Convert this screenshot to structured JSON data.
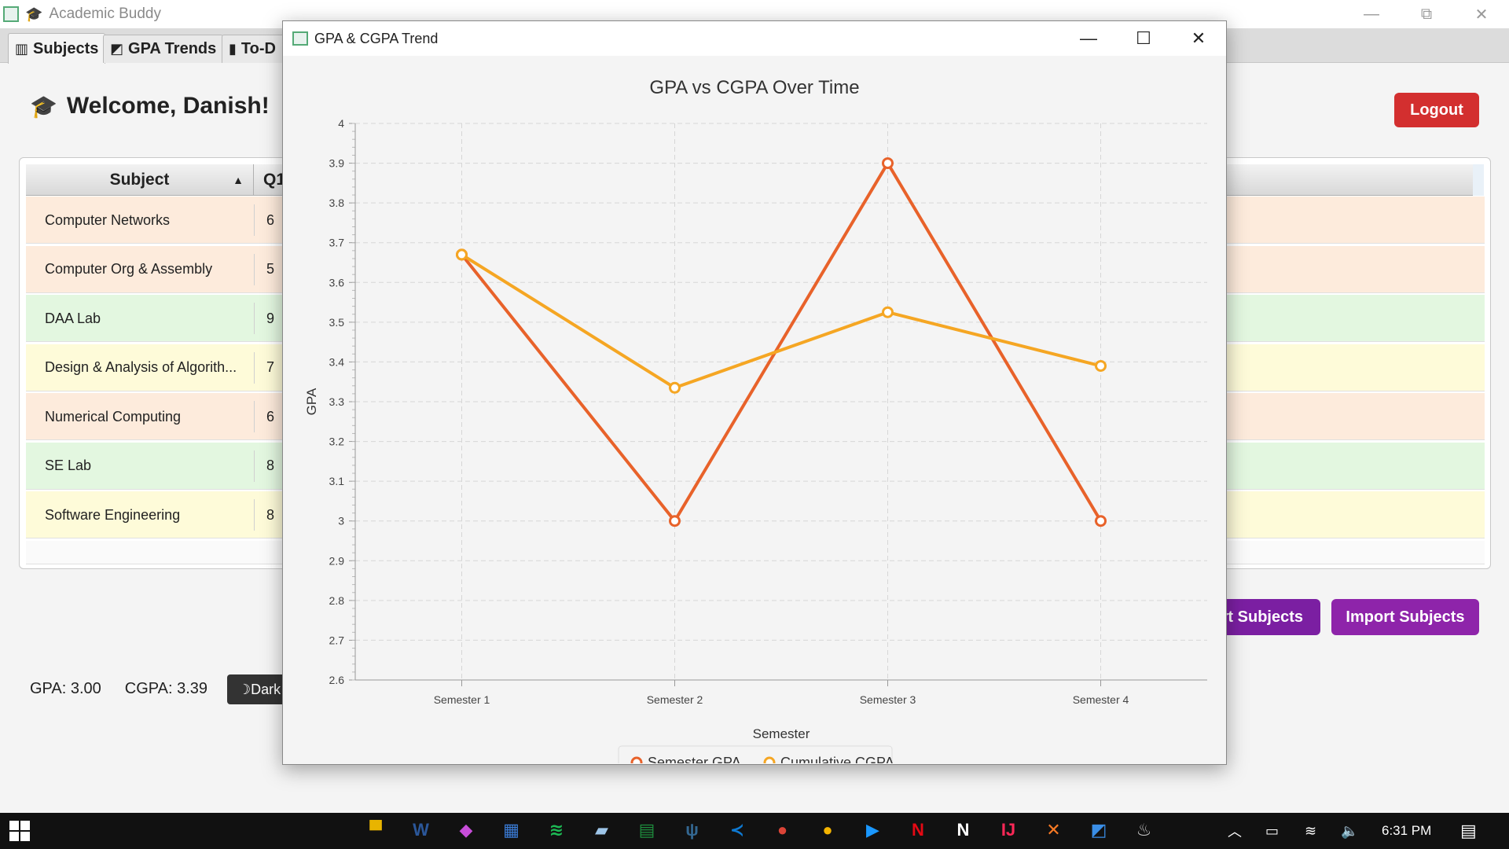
{
  "app": {
    "title": "Academic Buddy",
    "window_controls": [
      "minimize",
      "restore",
      "close"
    ]
  },
  "tabs": [
    {
      "label": "Subjects",
      "icon": "books-icon",
      "active": true
    },
    {
      "label": "GPA Trends",
      "icon": "chart-icon",
      "active": false
    },
    {
      "label": "To-D",
      "icon": "clipboard-icon",
      "active": false
    }
  ],
  "header": {
    "welcome": "Welcome, Danish!",
    "logout_label": "Logout"
  },
  "table": {
    "columns": [
      "Subject",
      "Q1"
    ],
    "rows": [
      {
        "subject": "Computer Networks",
        "q1": "6",
        "color": "#fdebdc"
      },
      {
        "subject": "Computer Org & Assembly",
        "q1": "5",
        "color": "#fdebdc"
      },
      {
        "subject": "DAA Lab",
        "q1": "9",
        "color": "#e3f7e0"
      },
      {
        "subject": "Design & Analysis of Algorith...",
        "q1": "7",
        "color": "#fefbd9"
      },
      {
        "subject": "Numerical Computing",
        "q1": "6",
        "color": "#fdebdc"
      },
      {
        "subject": "SE Lab",
        "q1": "8",
        "color": "#e3f7e0"
      },
      {
        "subject": "Software Engineering",
        "q1": "8",
        "color": "#fefbd9"
      }
    ]
  },
  "footer": {
    "gpa": "GPA: 3.00",
    "cgpa": "CGPA: 3.39",
    "dark_label": "Dark",
    "export_label": "rt Subjects",
    "import_label": "Import Subjects"
  },
  "dialog": {
    "title": "GPA & CGPA Trend"
  },
  "chart_data": {
    "type": "line",
    "title": "GPA vs CGPA Over Time",
    "xlabel": "Semester",
    "ylabel": "GPA",
    "categories": [
      "Semester 1",
      "Semester 2",
      "Semester 3",
      "Semester 4"
    ],
    "ylim": [
      2.6,
      4.0
    ],
    "yticks": [
      "2.6",
      "2.7",
      "2.8",
      "2.9",
      "3",
      "3.1",
      "3.2",
      "3.3",
      "3.4",
      "3.5",
      "3.6",
      "3.7",
      "3.8",
      "3.9",
      "4"
    ],
    "grid": true,
    "legend": "bottom-center",
    "series": [
      {
        "name": "Semester GPA",
        "color": "#e8622a",
        "values": [
          3.67,
          3.0,
          3.9,
          3.0
        ]
      },
      {
        "name": "Cumulative CGPA",
        "color": "#f5a623",
        "values": [
          3.67,
          3.335,
          3.525,
          3.39
        ]
      }
    ]
  },
  "taskbar": {
    "time": "6:31 PM",
    "apps": [
      {
        "name": "file-explorer-icon",
        "color": "#e8b400",
        "glyph": "▀"
      },
      {
        "name": "word-icon",
        "color": "#2b579a",
        "glyph": "W"
      },
      {
        "name": "copilot-icon",
        "color": "#c74dd9",
        "glyph": "◆"
      },
      {
        "name": "store-icon",
        "color": "#3a7bd5",
        "glyph": "▦"
      },
      {
        "name": "spotify-icon",
        "color": "#1db954",
        "glyph": "≋"
      },
      {
        "name": "notes-icon",
        "color": "#9ec5e8",
        "glyph": "▰"
      },
      {
        "name": "sheets-icon",
        "color": "#1e8e3e",
        "glyph": "▤"
      },
      {
        "name": "postgres-icon",
        "color": "#336791",
        "glyph": "ψ"
      },
      {
        "name": "vscode-icon",
        "color": "#0e7ad3",
        "glyph": "≺"
      },
      {
        "name": "chrome-icon",
        "color": "#db4437",
        "glyph": "●"
      },
      {
        "name": "chrome-alt-icon",
        "color": "#f4b400",
        "glyph": "●"
      },
      {
        "name": "prime-video-icon",
        "color": "#1a98ff",
        "glyph": "▶"
      },
      {
        "name": "netflix-icon",
        "color": "#e50914",
        "glyph": "N"
      },
      {
        "name": "notion-icon",
        "color": "#ffffff",
        "glyph": "N"
      },
      {
        "name": "intellij-icon",
        "color": "#fe2857",
        "glyph": "IJ"
      },
      {
        "name": "xampp-icon",
        "color": "#fb7a24",
        "glyph": "✕"
      },
      {
        "name": "photos-icon",
        "color": "#3a8ee6",
        "glyph": "◩"
      },
      {
        "name": "java-app-icon",
        "color": "#cccccc",
        "glyph": "♨"
      }
    ]
  }
}
